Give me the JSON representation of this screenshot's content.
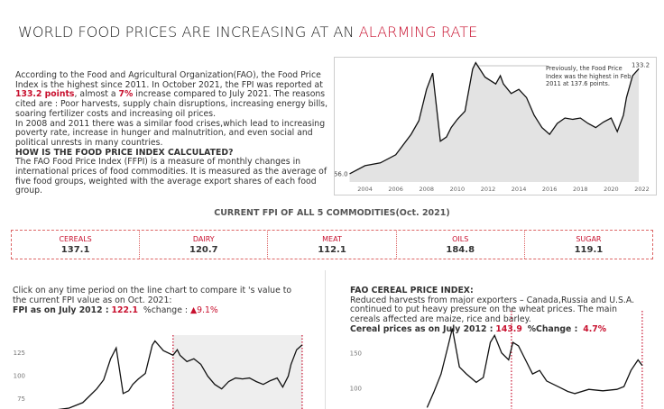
{
  "header": {
    "title": "WORLD FOOD PRICES ARE INCREASING AT AN",
    "title_highlight": "ALARMING RATE"
  },
  "intro": {
    "p1_a": "According to the Food and Agricultural Organization(FAO), the Food Price Index is the highest since 2011. In October 2021, the FPI was reported at ",
    "p1_b": "133.2 points",
    "p1_c": ", almost a ",
    "p1_d": "7%",
    "p1_e": " increase compared to July 2021. The reasons cited are : Poor harvests, supply chain disruptions, increasing energy bills, soaring fertilizer costs and increasing oil prices.",
    "p2": "In 2008 and 2011 there was a similar food crises,which lead to increasing poverty rate, increase in hunger and malnutrition, and even social and political unrests in many countries.",
    "heading": "HOW IS THE FOOD PRICE INDEX CALCULATED?",
    "p3": "The FAO Food Price Index (FFPI) is a measure of monthly changes in international prices of food commodities. It is measured as the average of five food groups, weighted with the average export shares of each food group."
  },
  "commodities": {
    "title": "CURRENT FPI OF ALL 5 COMMODITIES(Oct. 2021)",
    "items": [
      {
        "name": "CEREALS",
        "value": 137.1
      },
      {
        "name": "DAIRY",
        "value": 120.7
      },
      {
        "name": "MEAT",
        "value": 112.1
      },
      {
        "name": "OILS",
        "value": 184.8
      },
      {
        "name": "SUGAR",
        "value": 119.1
      }
    ]
  },
  "left_panel": {
    "instruction": "Click on any time period on the line chart to compare it 's value to the current FPI value as on Oct. 2021:",
    "label": "FPI as on July 2012 :",
    "value": "122.1",
    "change_label": "%change :",
    "change": "▲9.1%"
  },
  "right_panel": {
    "title": "FAO CEREAL PRICE INDEX:",
    "text": "Reduced harvests from major exporters – Canada,Russia and U.S.A. continued to put heavy pressure on the wheat prices. The main cereals affected are maize, rice and barley.",
    "label": "Cereal prices as on July 2012 :",
    "value": "143.9",
    "change_label": "%Change :",
    "change": "4.7%"
  },
  "chart_data": [
    {
      "type": "line",
      "color": "#111111",
      "area": true,
      "area_color": "#e3e3e3",
      "start_label": "56.0",
      "end_label": "133.2",
      "annotation": "Previously, the Food Price Index was the highest in Feb 2011 at 137.6 points.",
      "x": [
        2003,
        2004,
        2005,
        2006,
        2007,
        2007.5,
        2008,
        2008.4,
        2008.9,
        2009.3,
        2009.6,
        2010,
        2010.5,
        2011,
        2011.2,
        2011.8,
        2012.5,
        2012.8,
        2013,
        2013.5,
        2014,
        2014.5,
        2015,
        2015.5,
        2016,
        2016.5,
        2017,
        2017.5,
        2018,
        2018.5,
        2019,
        2019.5,
        2020,
        2020.4,
        2020.8,
        2021,
        2021.4,
        2021.8
      ],
      "values": [
        56,
        62,
        64,
        70,
        85,
        95,
        118,
        130,
        80,
        83,
        90,
        96,
        102,
        133,
        137.6,
        127,
        122,
        128,
        122,
        115,
        118,
        112,
        99,
        90,
        85,
        93,
        97,
        96,
        97,
        93,
        90,
        94,
        97,
        87,
        99,
        112,
        128,
        133.2
      ],
      "xlim": [
        2002.5,
        2022.5
      ],
      "ylim": [
        50,
        140
      ],
      "xticks": [
        2004,
        2006,
        2008,
        2010,
        2012,
        2014,
        2016,
        2018,
        2020,
        2022
      ]
    },
    {
      "type": "line",
      "color": "#111111",
      "highlight": [
        2012.5,
        2021.8
      ],
      "highlight_color": "#c8102e",
      "highlight_shade": "#eeeeee",
      "x": [
        2003,
        2004,
        2005,
        2006,
        2007,
        2007.5,
        2008,
        2008.4,
        2008.9,
        2009.3,
        2009.6,
        2010,
        2010.5,
        2011,
        2011.2,
        2011.8,
        2012.5,
        2012.8,
        2013,
        2013.5,
        2014,
        2014.5,
        2015,
        2015.5,
        2016,
        2016.5,
        2017,
        2017.5,
        2018,
        2018.5,
        2019,
        2019.5,
        2020,
        2020.4,
        2020.8,
        2021,
        2021.4,
        2021.8
      ],
      "values": [
        56,
        62,
        64,
        70,
        85,
        95,
        118,
        130,
        80,
        83,
        90,
        96,
        102,
        133,
        137.6,
        127,
        122,
        128,
        122,
        115,
        118,
        112,
        99,
        90,
        85,
        93,
        97,
        96,
        97,
        93,
        90,
        94,
        97,
        87,
        99,
        112,
        128,
        133.2
      ],
      "xlim": [
        2002.5,
        2022
      ],
      "ylim": [
        63,
        144
      ],
      "yticks": [
        75,
        100,
        125
      ]
    },
    {
      "type": "line",
      "color": "#111111",
      "highlight": [
        2012.5,
        2021.8
      ],
      "highlight_color": "#c8102e",
      "x": [
        2006.5,
        2007,
        2007.5,
        2008,
        2008.3,
        2008.8,
        2009.3,
        2010,
        2010.5,
        2011,
        2011.3,
        2011.8,
        2012.3,
        2012.6,
        2013,
        2013.5,
        2014,
        2014.5,
        2015,
        2016,
        2016.5,
        2017,
        2018,
        2019,
        2020,
        2020.5,
        2021,
        2021.5,
        2021.8
      ],
      "values": [
        72,
        95,
        120,
        160,
        185,
        130,
        120,
        108,
        115,
        165,
        175,
        150,
        140,
        165,
        160,
        140,
        120,
        125,
        110,
        100,
        95,
        92,
        98,
        96,
        98,
        102,
        125,
        140,
        132
      ],
      "xlim": [
        2002.5,
        2022
      ],
      "ylim": [
        70,
        210
      ],
      "yticks": [
        100,
        150
      ]
    }
  ]
}
